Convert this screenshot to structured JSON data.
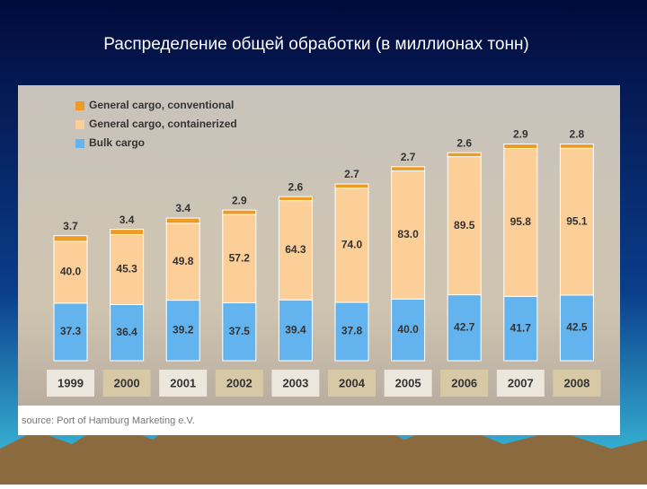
{
  "title": "Распределение общей обработки (в миллионах тонн)",
  "chart_data": {
    "type": "bar",
    "stacked": true,
    "categories": [
      "1999",
      "2000",
      "2001",
      "2002",
      "2003",
      "2004",
      "2005",
      "2006",
      "2007",
      "2008"
    ],
    "series": [
      {
        "name": "Bulk cargo",
        "color": "#63b4ee",
        "values": [
          37.3,
          36.4,
          39.2,
          37.5,
          39.4,
          37.8,
          40.0,
          42.7,
          41.7,
          42.5
        ],
        "value_labels": [
          "37.3",
          "36.4",
          "39.2",
          "37.5",
          "39.4",
          "37.8",
          "40.0",
          "42.7",
          "41.7",
          "42.5"
        ]
      },
      {
        "name": "General cargo, containerized",
        "color": "#fccf98",
        "values": [
          40.0,
          45.3,
          49.8,
          57.2,
          64.3,
          74.0,
          83.0,
          89.5,
          95.8,
          95.1
        ],
        "value_labels": [
          "40.0",
          "45.3",
          "49.8",
          "57.2",
          "64.3",
          "74.0",
          "83.0",
          "89.5",
          "95.8",
          "95.1"
        ]
      },
      {
        "name": "General cargo, conventional",
        "color": "#ef9a22",
        "values": [
          3.7,
          3.4,
          3.4,
          2.9,
          2.6,
          2.7,
          2.7,
          2.6,
          2.9,
          2.8
        ],
        "value_labels": [
          "3.7",
          "3.4",
          "3.4",
          "2.9",
          "2.6",
          "2.7",
          "2.7",
          "2.6",
          "2.9",
          "2.8"
        ]
      }
    ],
    "source": "source: Port of Hamburg Marketing e.V."
  }
}
